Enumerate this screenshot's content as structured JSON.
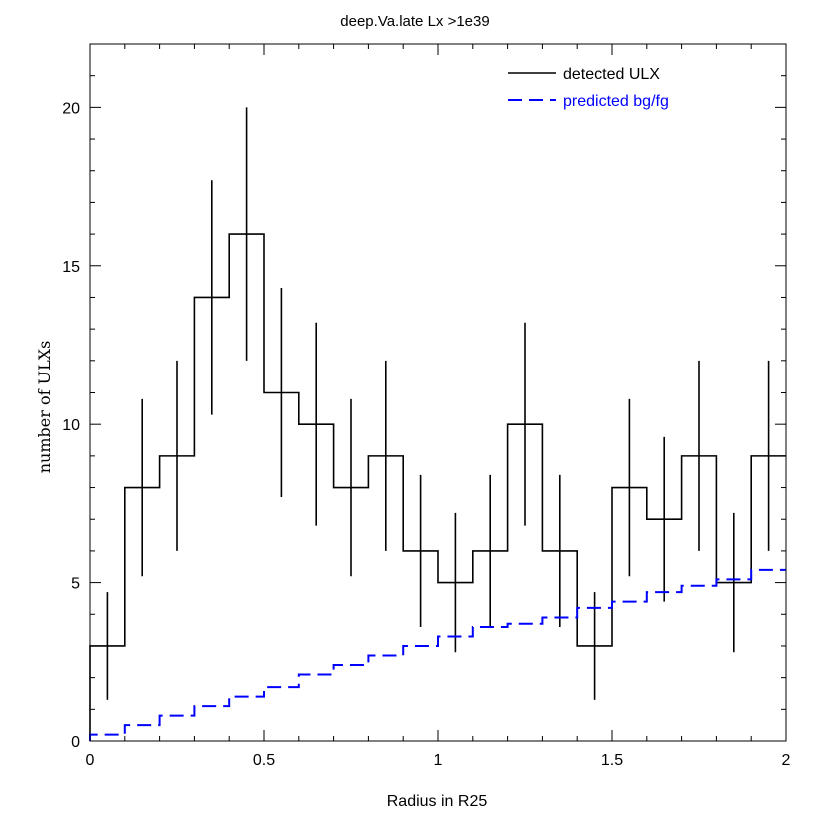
{
  "chart_data": {
    "type": "line",
    "title": "deep.Va.late Lx >1e39",
    "xlabel": "Radius in R25",
    "ylabel": "number of ULXs",
    "xlim": [
      0,
      2
    ],
    "ylim": [
      0,
      22
    ],
    "x_ticks": [
      0,
      0.5,
      1,
      1.5,
      2
    ],
    "x_tick_labels": [
      "0",
      "0.5",
      "1",
      "1.5",
      "2"
    ],
    "y_ticks": [
      0,
      5,
      10,
      15,
      20
    ],
    "y_tick_labels": [
      "0",
      "5",
      "10",
      "15",
      "20"
    ],
    "x_minor_step": 0.1,
    "y_minor_step": 1,
    "legend_position": "top-right",
    "bin_width": 0.1,
    "series": [
      {
        "name": "detected ULX",
        "style": "solid-step-with-errorbars",
        "color": "#000000",
        "x": [
          0.05,
          0.15,
          0.25,
          0.35,
          0.45,
          0.55,
          0.65,
          0.75,
          0.85,
          0.95,
          1.05,
          1.15,
          1.25,
          1.35,
          1.45,
          1.55,
          1.65,
          1.75,
          1.85,
          1.95
        ],
        "values": [
          3,
          8,
          9,
          14,
          16,
          11,
          10,
          8,
          9,
          6,
          5,
          6,
          10,
          6,
          3,
          8,
          7,
          9,
          5,
          9
        ],
        "errors": [
          1.7,
          2.8,
          3.0,
          3.7,
          4.0,
          3.3,
          3.2,
          2.8,
          3.0,
          2.4,
          2.2,
          2.4,
          3.2,
          2.4,
          1.7,
          2.8,
          2.6,
          3.0,
          2.2,
          3.0
        ]
      },
      {
        "name": "predicted bg/fg",
        "style": "dashed-step",
        "color": "#0000ff",
        "x": [
          0.05,
          0.15,
          0.25,
          0.35,
          0.45,
          0.55,
          0.65,
          0.75,
          0.85,
          0.95,
          1.05,
          1.15,
          1.25,
          1.35,
          1.45,
          1.55,
          1.65,
          1.75,
          1.85,
          1.95
        ],
        "values": [
          0.2,
          0.5,
          0.8,
          1.1,
          1.4,
          1.7,
          2.1,
          2.4,
          2.7,
          3.0,
          3.3,
          3.6,
          3.7,
          3.9,
          4.2,
          4.4,
          4.7,
          4.9,
          5.1,
          5.4
        ]
      }
    ]
  }
}
